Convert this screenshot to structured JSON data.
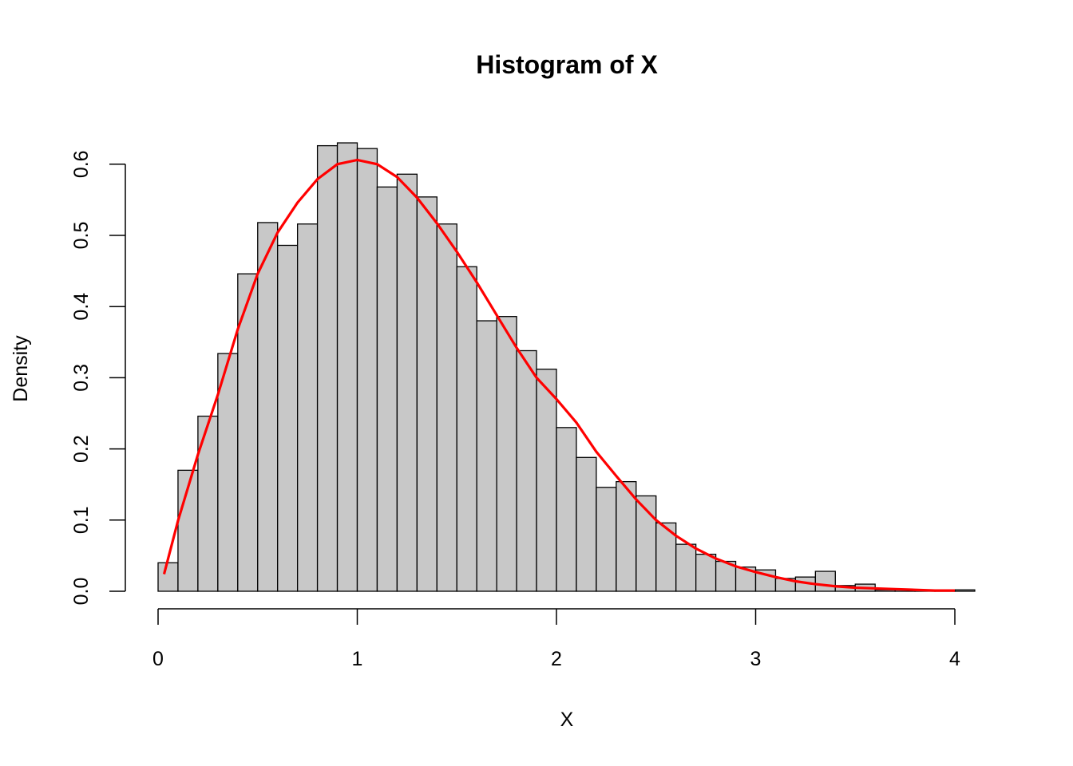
{
  "chart_data": {
    "type": "bar",
    "title": "Histogram of X",
    "xlabel": "X",
    "ylabel": "Density",
    "xlim": [
      0,
      4.1
    ],
    "ylim": [
      0,
      0.6
    ],
    "bin_width": 0.1,
    "x_ticks": [
      "0",
      "1",
      "2",
      "3",
      "4"
    ],
    "y_ticks": [
      "0.0",
      "0.1",
      "0.2",
      "0.3",
      "0.4",
      "0.5",
      "0.6"
    ],
    "bins": [
      0.0,
      0.1,
      0.2,
      0.3,
      0.4,
      0.5,
      0.6,
      0.7,
      0.8,
      0.9,
      1.0,
      1.1,
      1.2,
      1.3,
      1.4,
      1.5,
      1.6,
      1.7,
      1.8,
      1.9,
      2.0,
      2.1,
      2.2,
      2.3,
      2.4,
      2.5,
      2.6,
      2.7,
      2.8,
      2.9,
      3.0,
      3.1,
      3.2,
      3.3,
      3.4,
      3.5,
      3.6,
      3.7,
      3.8,
      3.9,
      4.0
    ],
    "values": [
      0.04,
      0.17,
      0.246,
      0.334,
      0.446,
      0.518,
      0.486,
      0.516,
      0.626,
      0.63,
      0.622,
      0.568,
      0.586,
      0.554,
      0.516,
      0.456,
      0.38,
      0.386,
      0.338,
      0.312,
      0.23,
      0.188,
      0.146,
      0.154,
      0.134,
      0.096,
      0.066,
      0.052,
      0.042,
      0.034,
      0.03,
      0.018,
      0.02,
      0.028,
      0.008,
      0.01,
      0.002,
      0.002,
      0.002,
      0.002,
      0.002
    ],
    "density_curve": {
      "color": "#ff0000",
      "x": [
        0.03,
        0.1,
        0.2,
        0.3,
        0.4,
        0.5,
        0.6,
        0.7,
        0.8,
        0.9,
        1.0,
        1.1,
        1.2,
        1.3,
        1.4,
        1.5,
        1.6,
        1.7,
        1.8,
        1.9,
        2.0,
        2.1,
        2.2,
        2.3,
        2.4,
        2.5,
        2.6,
        2.7,
        2.8,
        2.9,
        3.0,
        3.1,
        3.2,
        3.3,
        3.4,
        3.5,
        3.6,
        3.7,
        3.8,
        3.9,
        4.0
      ],
      "y": [
        0.024,
        0.099,
        0.192,
        0.276,
        0.368,
        0.446,
        0.504,
        0.546,
        0.579,
        0.6,
        0.606,
        0.6,
        0.582,
        0.553,
        0.517,
        0.477,
        0.434,
        0.388,
        0.342,
        0.3,
        0.27,
        0.237,
        0.196,
        0.162,
        0.129,
        0.1,
        0.078,
        0.06,
        0.046,
        0.035,
        0.027,
        0.02,
        0.014,
        0.01,
        0.007,
        0.005,
        0.004,
        0.003,
        0.002,
        0.001,
        0.001
      ]
    },
    "bar_fill": "#c8c8c8",
    "grid": false
  }
}
